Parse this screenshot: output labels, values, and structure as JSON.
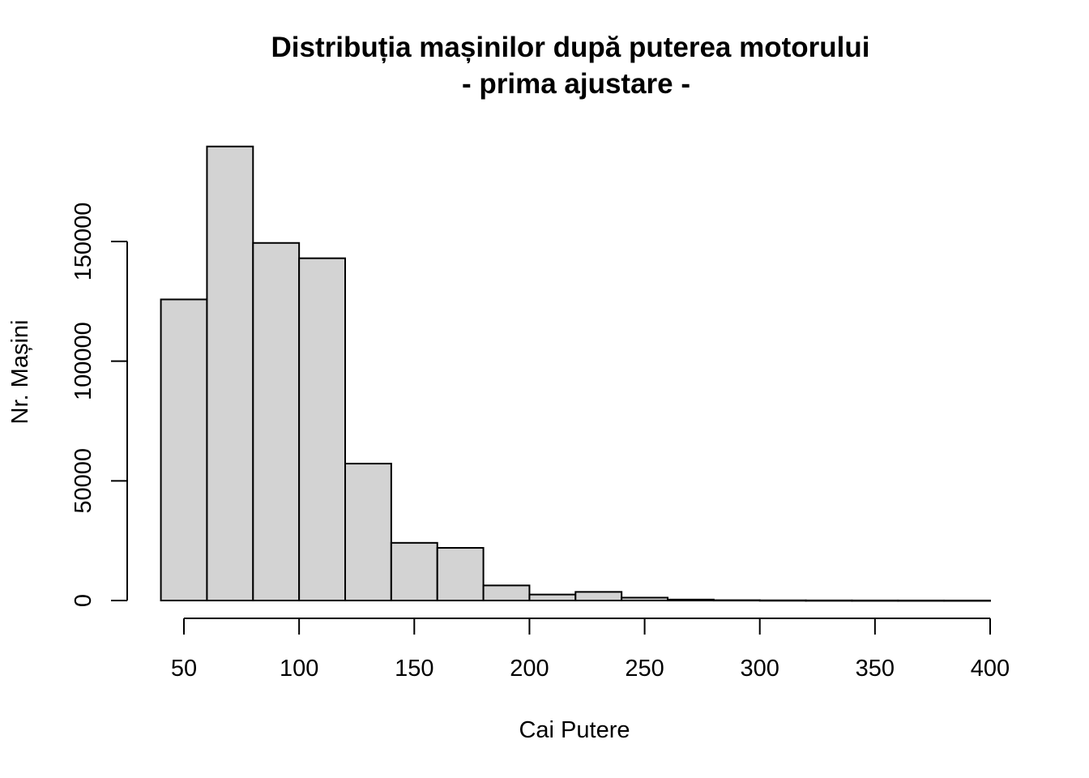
{
  "chart_data": {
    "type": "bar",
    "title": "Distribuția mașinilor după puterea motorului",
    "subtitle": "- prima ajustare -",
    "xlabel": "Cai Putere",
    "ylabel": "Nr. Mașini",
    "bin_edges": [
      40,
      60,
      80,
      100,
      120,
      140,
      160,
      180,
      200,
      220,
      240,
      260,
      280,
      300,
      320,
      340,
      360,
      380,
      400
    ],
    "values": [
      125800,
      189700,
      149400,
      143000,
      57200,
      24100,
      22000,
      6300,
      2500,
      3600,
      1200,
      400,
      150,
      80,
      50,
      30,
      20,
      10
    ],
    "x_ticks": [
      "50",
      "100",
      "150",
      "200",
      "250",
      "300",
      "350",
      "400"
    ],
    "y_ticks": [
      "0",
      "50000",
      "100000",
      "150000"
    ],
    "xlim": [
      50,
      400
    ],
    "ylim": [
      0,
      150000
    ],
    "grid": false,
    "bar_fill": "#d3d3d3",
    "bar_stroke": "#000000"
  }
}
